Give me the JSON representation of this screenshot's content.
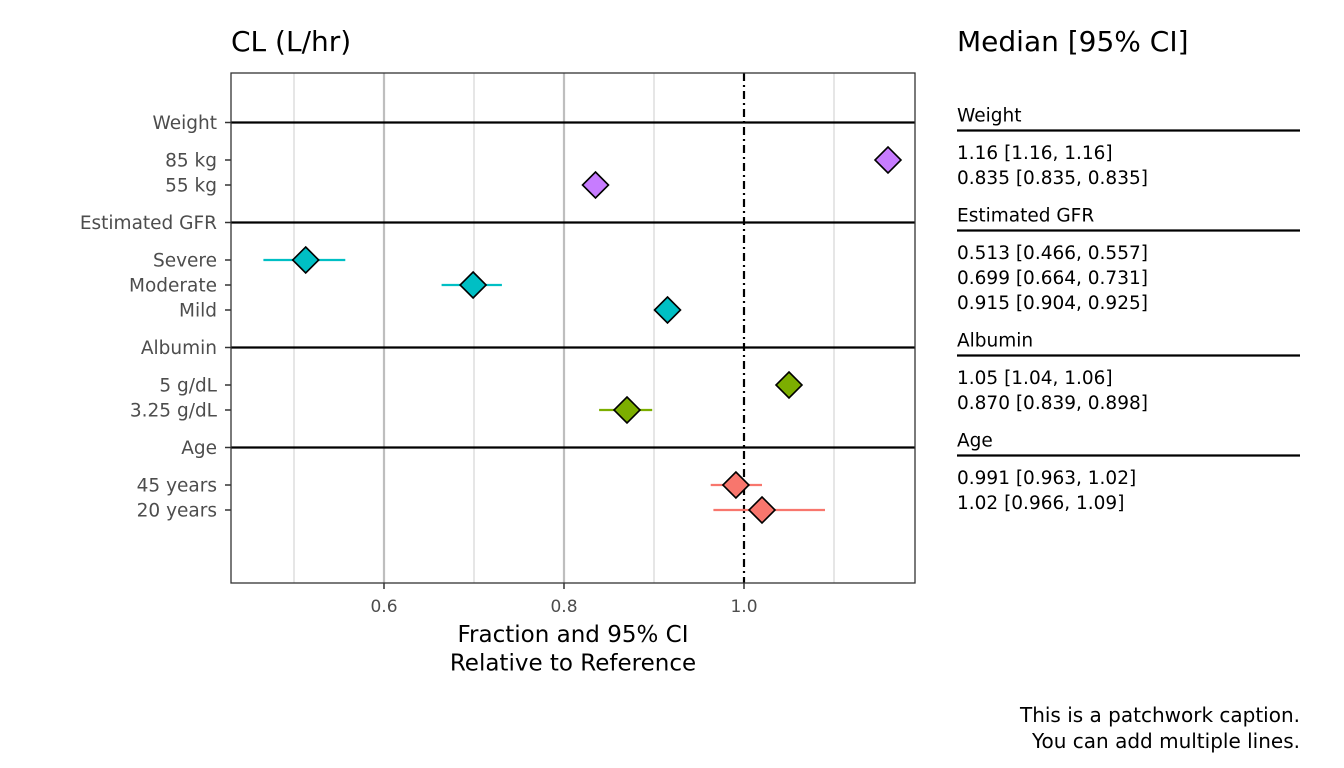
{
  "chart_data": {
    "type": "scatter",
    "subtype": "forest-plot",
    "title": "CL (L/hr)",
    "xlabel_lines": [
      "Fraction and 95% CI",
      "Relative to Reference"
    ],
    "xlim": [
      0.43,
      1.19
    ],
    "x_ticks": [
      0.6,
      0.8,
      1.0
    ],
    "x_tick_labels": [
      "0.6",
      "0.8",
      "1.0"
    ],
    "reference_line": 1.0,
    "grid": true,
    "groups": [
      {
        "name": "Weight",
        "color": "#C77CFF",
        "rows": [
          {
            "label": "85 kg",
            "median": 1.16,
            "lower": 1.16,
            "upper": 1.16,
            "text": "1.16 [1.16, 1.16]"
          },
          {
            "label": "55 kg",
            "median": 0.835,
            "lower": 0.835,
            "upper": 0.835,
            "text": "0.835 [0.835, 0.835]"
          }
        ]
      },
      {
        "name": "Estimated GFR",
        "color": "#00BFC4",
        "rows": [
          {
            "label": "Severe",
            "median": 0.513,
            "lower": 0.466,
            "upper": 0.557,
            "text": "0.513 [0.466, 0.557]"
          },
          {
            "label": "Moderate",
            "median": 0.699,
            "lower": 0.664,
            "upper": 0.731,
            "text": "0.699 [0.664, 0.731]"
          },
          {
            "label": "Mild",
            "median": 0.915,
            "lower": 0.904,
            "upper": 0.925,
            "text": "0.915 [0.904, 0.925]"
          }
        ]
      },
      {
        "name": "Albumin",
        "color": "#7CAE00",
        "rows": [
          {
            "label": "5 g/dL",
            "median": 1.05,
            "lower": 1.04,
            "upper": 1.06,
            "text": "1.05 [1.04, 1.06]"
          },
          {
            "label": "3.25 g/dL",
            "median": 0.87,
            "lower": 0.839,
            "upper": 0.898,
            "text": "0.870 [0.839, 0.898]"
          }
        ]
      },
      {
        "name": "Age",
        "color": "#F8766D",
        "rows": [
          {
            "label": "45 years",
            "median": 0.991,
            "lower": 0.963,
            "upper": 1.02,
            "text": "0.991 [0.963, 1.02]"
          },
          {
            "label": "20 years",
            "median": 1.02,
            "lower": 0.966,
            "upper": 1.09,
            "text": "1.02 [0.966, 1.09]"
          }
        ]
      }
    ]
  },
  "table": {
    "title": "Median [95% CI]"
  },
  "caption_lines": [
    "This is a patchwork caption.",
    "You can add multiple lines."
  ]
}
